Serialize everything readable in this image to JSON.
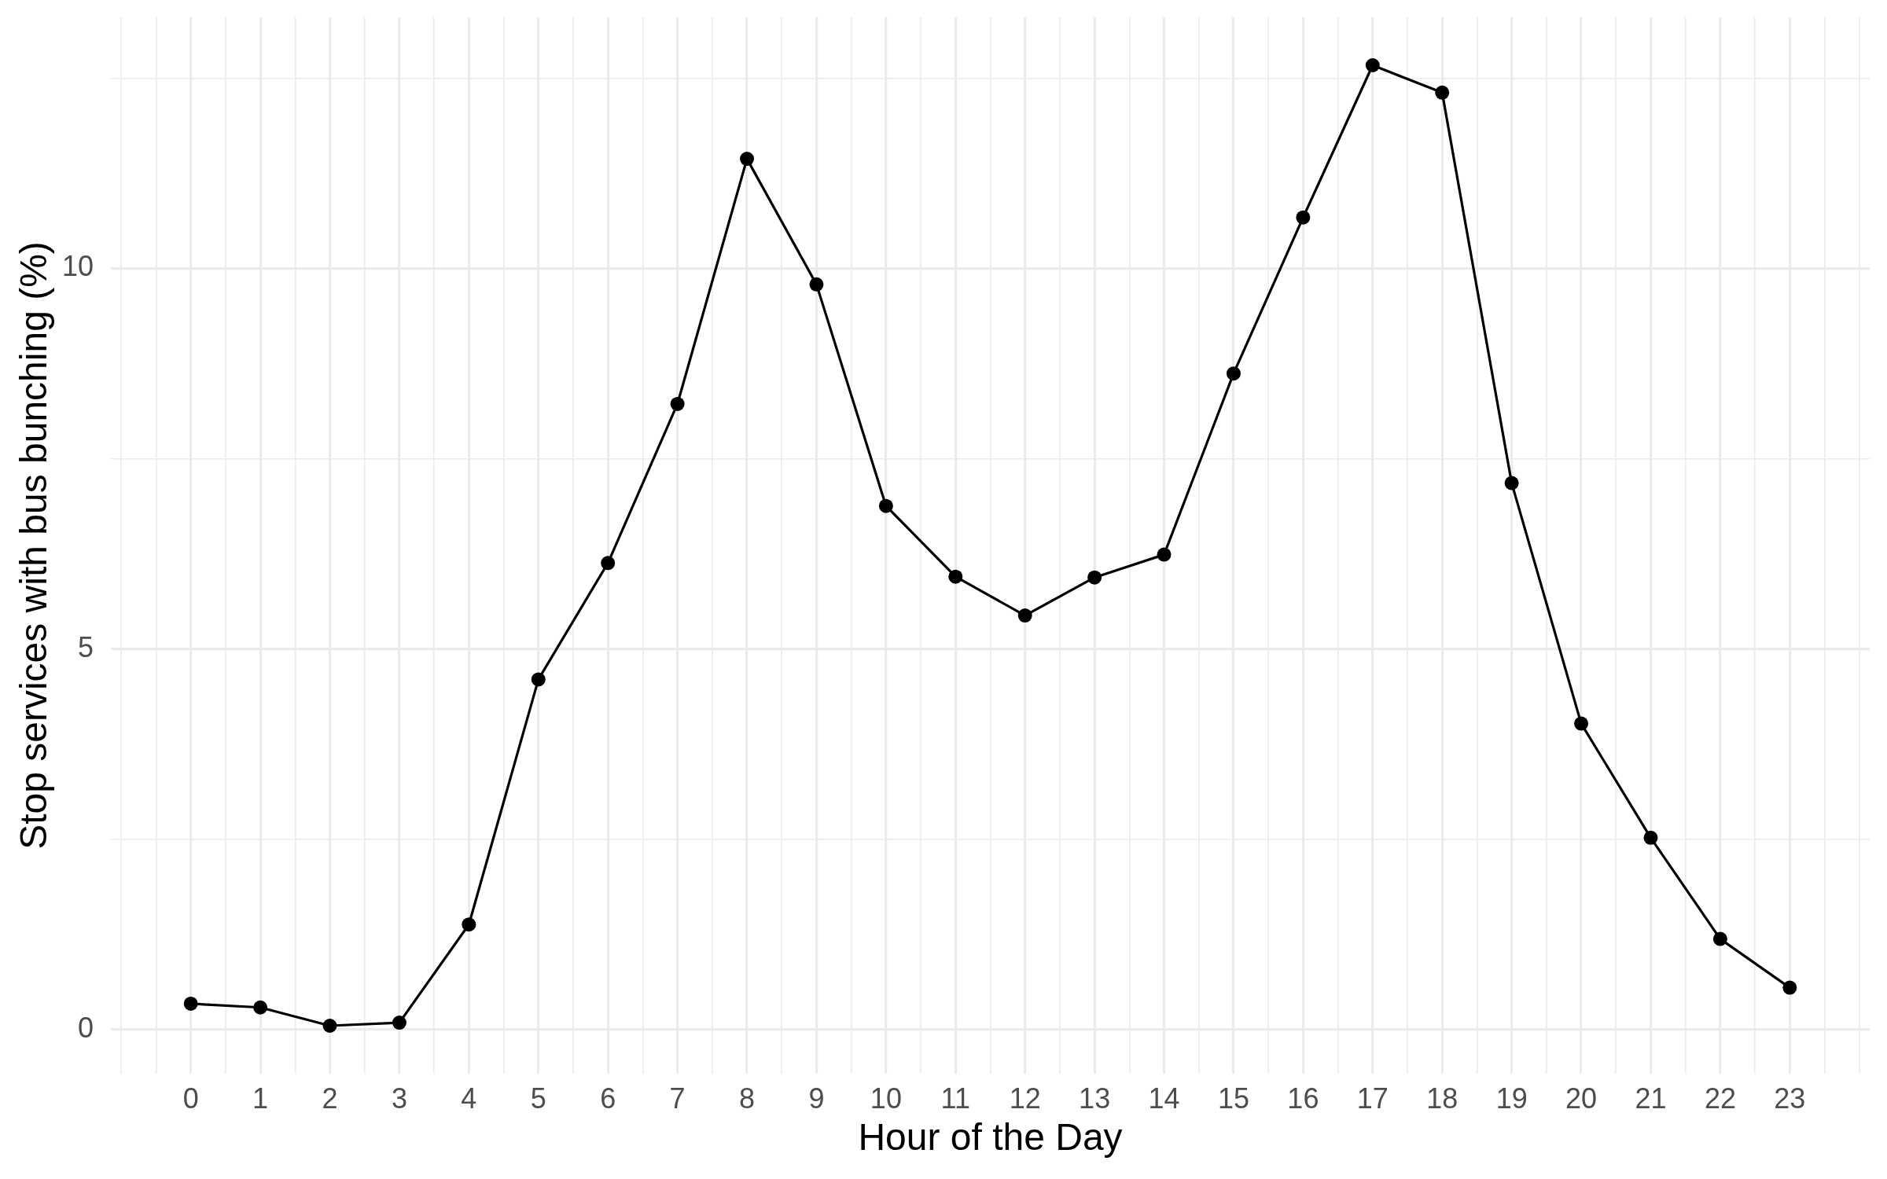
{
  "chart_data": {
    "type": "line",
    "xlabel": "Hour of the Day",
    "ylabel": "Stop services with bus bunching (%)",
    "x": [
      0,
      1,
      2,
      3,
      4,
      5,
      6,
      7,
      8,
      9,
      10,
      11,
      12,
      13,
      14,
      15,
      16,
      17,
      18,
      19,
      20,
      21,
      22,
      23
    ],
    "values": [
      0.34,
      0.29,
      0.05,
      0.09,
      1.38,
      4.6,
      6.13,
      8.22,
      11.44,
      9.79,
      6.88,
      5.95,
      5.44,
      5.94,
      6.24,
      8.62,
      10.67,
      12.67,
      12.31,
      7.18,
      4.02,
      2.52,
      1.19,
      0.55
    ],
    "color": "#000000",
    "marker": "circle",
    "line_style": "solid",
    "grid": true,
    "xlim": [
      -1.15,
      24.15
    ],
    "xticks": [
      {
        "value": -1,
        "label": null
      },
      {
        "value": -0.5,
        "label": null
      },
      0,
      {
        "value": 0.5,
        "label": null
      },
      1,
      {
        "value": 1.5,
        "label": null
      },
      2,
      {
        "value": 2.5,
        "label": null
      },
      3,
      {
        "value": 3.5,
        "label": null
      },
      4,
      {
        "value": 4.5,
        "label": null
      },
      5,
      {
        "value": 5.5,
        "label": null
      },
      6,
      {
        "value": 6.5,
        "label": null
      },
      7,
      {
        "value": 7.5,
        "label": null
      },
      8,
      {
        "value": 8.5,
        "label": null
      },
      9,
      {
        "value": 9.5,
        "label": null
      },
      10,
      {
        "value": 10.5,
        "label": null
      },
      11,
      {
        "value": 11.5,
        "label": null
      },
      12,
      {
        "value": 12.5,
        "label": null
      },
      13,
      {
        "value": 13.5,
        "label": null
      },
      14,
      {
        "value": 14.5,
        "label": null
      },
      15,
      {
        "value": 15.5,
        "label": null
      },
      16,
      {
        "value": 16.5,
        "label": null
      },
      17,
      {
        "value": 17.5,
        "label": null
      },
      18,
      {
        "value": 18.5,
        "label": null
      },
      19,
      {
        "value": 19.5,
        "label": null
      },
      20,
      {
        "value": 20.5,
        "label": null
      },
      21,
      {
        "value": 21.5,
        "label": null
      },
      22,
      {
        "value": 22.5,
        "label": null
      },
      23,
      {
        "value": 23.5,
        "label": null
      },
      {
        "value": 24,
        "label": null
      }
    ],
    "ylim": [
      -0.58,
      13.3
    ],
    "yticks": [
      0,
      {
        "value": 2.5,
        "label": null
      },
      5,
      {
        "value": 7.5,
        "label": null
      },
      10,
      {
        "value": 12.5,
        "label": null
      }
    ]
  }
}
